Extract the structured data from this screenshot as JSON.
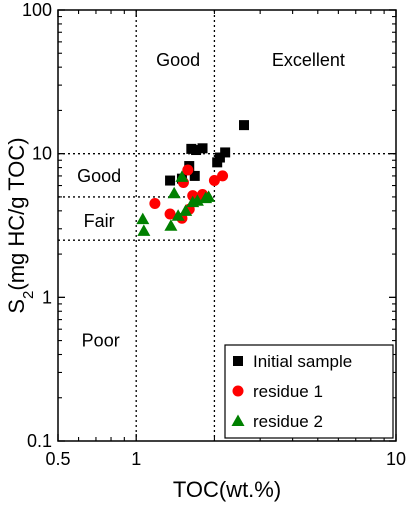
{
  "chart_data": {
    "type": "scatter",
    "xlabel": "TOC(wt.%)",
    "ylabel": {
      "prefix": "S",
      "sub": "2",
      "suffix": "(mg HC/g TOC)"
    },
    "x_scale": "log",
    "y_scale": "log",
    "xlim": [
      0.5,
      10
    ],
    "ylim": [
      0.1,
      100
    ],
    "x_ticks": [
      {
        "value": 0.5,
        "label": "0.5"
      },
      {
        "value": 1,
        "label": "1"
      },
      {
        "value": 10,
        "label": "10"
      }
    ],
    "y_ticks": [
      {
        "value": 0.1,
        "label": "0.1"
      },
      {
        "value": 1,
        "label": "1"
      },
      {
        "value": 10,
        "label": "10"
      },
      {
        "value": 100,
        "label": "100"
      }
    ],
    "reference_lines": {
      "vertical": [
        1,
        2
      ],
      "horizontal_full": [
        10
      ],
      "horizontal_partial": [
        {
          "y": 5,
          "x_from": 0.5,
          "x_to": 2
        },
        {
          "y": 2.5,
          "x_from": 0.5,
          "x_to": 2
        }
      ]
    },
    "region_labels": [
      {
        "text": "Good",
        "x": 1.45,
        "y": 45
      },
      {
        "text": "Excellent",
        "x": 4.6,
        "y": 45
      },
      {
        "text": "Good",
        "x": 0.72,
        "y": 7.0
      },
      {
        "text": "Fair",
        "x": 0.72,
        "y": 3.4
      },
      {
        "text": "Poor",
        "x": 0.73,
        "y": 0.5
      }
    ],
    "legend_position": "bottom-right",
    "series": [
      {
        "name": "Initial sample",
        "marker": "square",
        "color": "#000000",
        "points": [
          [
            1.35,
            6.5
          ],
          [
            1.5,
            6.7
          ],
          [
            1.6,
            8.2
          ],
          [
            1.63,
            10.8
          ],
          [
            1.7,
            10.6
          ],
          [
            1.8,
            10.9
          ],
          [
            1.68,
            7.0
          ],
          [
            2.05,
            8.7
          ],
          [
            2.1,
            9.4
          ],
          [
            2.2,
            10.2
          ],
          [
            2.6,
            15.8
          ]
        ]
      },
      {
        "name": "residue 1",
        "marker": "circle",
        "color": "#ff0000",
        "points": [
          [
            1.18,
            4.5
          ],
          [
            1.35,
            3.8
          ],
          [
            1.5,
            3.55
          ],
          [
            1.52,
            6.3
          ],
          [
            1.58,
            7.7
          ],
          [
            1.6,
            4.1
          ],
          [
            1.65,
            5.1
          ],
          [
            1.73,
            4.9
          ],
          [
            1.8,
            5.2
          ],
          [
            2.0,
            6.5
          ],
          [
            2.15,
            7.0
          ]
        ]
      },
      {
        "name": "residue 2",
        "marker": "triangle",
        "color": "#008000",
        "points": [
          [
            1.06,
            3.5
          ],
          [
            1.07,
            2.9
          ],
          [
            1.36,
            3.15
          ],
          [
            1.4,
            5.3
          ],
          [
            1.45,
            3.7
          ],
          [
            1.5,
            6.9
          ],
          [
            1.55,
            4.0
          ],
          [
            1.65,
            4.6
          ],
          [
            1.72,
            4.7
          ],
          [
            1.85,
            4.9
          ],
          [
            1.9,
            5.0
          ]
        ]
      }
    ]
  }
}
